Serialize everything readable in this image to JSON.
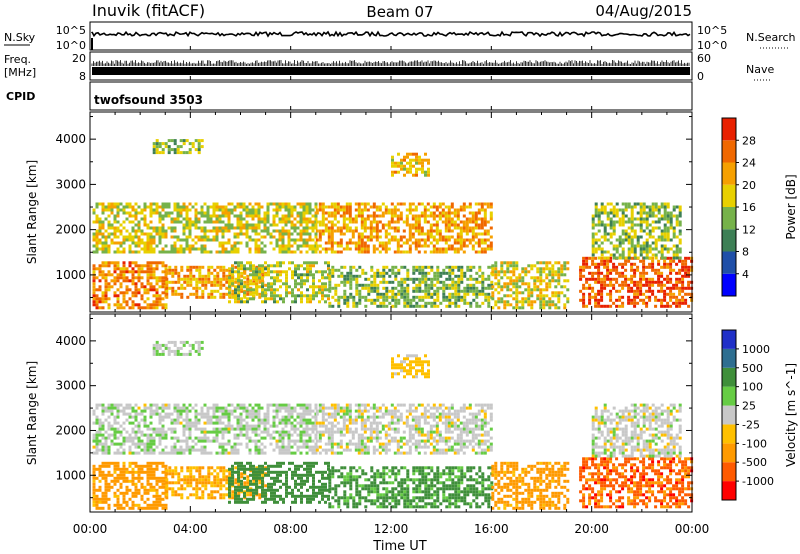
{
  "header": {
    "station": "Inuvik (fitACF)",
    "beam": "Beam 07",
    "date": "04/Aug/2015"
  },
  "noise_panel": {
    "left_label": "N.Sky",
    "right_label": "N.Search",
    "ticks": [
      "10^0",
      "10^5"
    ]
  },
  "freq_panel": {
    "left_label": "Freq.",
    "left_unit": "[MHz]",
    "left_ticks": [
      "8",
      "20"
    ],
    "right_label": "Nave",
    "right_ticks": [
      "0",
      "60"
    ]
  },
  "cpid_panel": {
    "label": "CPID",
    "program": "twofsound 3503"
  },
  "colors": {
    "power_scale": [
      "#0000ff",
      "#1f4fa8",
      "#3d7f55",
      "#76b24a",
      "#e8d000",
      "#f6a000",
      "#f06800",
      "#e82000"
    ],
    "velocity_scale": [
      "#ff0000",
      "#ff5a00",
      "#ff9a00",
      "#ffc000",
      "#c8c8c8",
      "#66cc44",
      "#3f8f3a",
      "#2e6e90",
      "#2030c8"
    ]
  },
  "chart_data": {
    "type": "heatmap",
    "xlabel": "Time UT",
    "x_ticks": [
      "00:00",
      "04:00",
      "08:00",
      "12:00",
      "16:00",
      "20:00",
      "00:00"
    ],
    "x_range_hours": [
      0,
      24
    ],
    "panels": [
      {
        "name": "power",
        "ylabel": "Slant Range [km]",
        "ylim": [
          180,
          4600
        ],
        "y_ticks": [
          1000,
          2000,
          3000,
          4000
        ],
        "colorbar_label": "Power [dB]",
        "colorbar_ticks": [
          "4",
          "8",
          "12",
          "16",
          "20",
          "24",
          "28"
        ],
        "colorbar_range": [
          0,
          32
        ]
      },
      {
        "name": "velocity",
        "ylabel": "Slant Range [km]",
        "ylim": [
          180,
          4600
        ],
        "y_ticks": [
          1000,
          2000,
          3000,
          4000
        ],
        "colorbar_label": "Velocity [m s^-1]",
        "colorbar_ticks": [
          "-1000",
          "-500",
          "-100",
          "-25",
          "25",
          "100",
          "500",
          "1000"
        ]
      }
    ],
    "echo_regions": [
      {
        "t": [
          0.1,
          3.0
        ],
        "r": [
          250,
          1300
        ],
        "power": 24,
        "velocity": -200
      },
      {
        "t": [
          3.0,
          7.0
        ],
        "r": [
          500,
          1200
        ],
        "power": 22,
        "velocity": -100
      },
      {
        "t": [
          5.5,
          9.5
        ],
        "r": [
          400,
          1300
        ],
        "power": 16,
        "velocity": 300
      },
      {
        "t": [
          0.1,
          9.0
        ],
        "r": [
          1500,
          2600
        ],
        "power": 17,
        "velocity": 10
      },
      {
        "t": [
          9.0,
          16.0
        ],
        "r": [
          1500,
          2600
        ],
        "power": 22,
        "velocity": 0
      },
      {
        "t": [
          9.5,
          16.0
        ],
        "r": [
          300,
          1200
        ],
        "power": 14,
        "velocity": 150
      },
      {
        "t": [
          12.0,
          13.5
        ],
        "r": [
          3200,
          3700
        ],
        "power": 20,
        "velocity": -50
      },
      {
        "t": [
          2.5,
          4.5
        ],
        "r": [
          3700,
          4000
        ],
        "power": 14,
        "velocity": 10
      },
      {
        "t": [
          16.0,
          19.0
        ],
        "r": [
          250,
          1300
        ],
        "power": 18,
        "velocity": -200
      },
      {
        "t": [
          19.5,
          24.0
        ],
        "r": [
          300,
          1400
        ],
        "power": 27,
        "velocity": -700
      },
      {
        "t": [
          20.0,
          23.5
        ],
        "r": [
          1400,
          2600
        ],
        "power": 15,
        "velocity": 0
      }
    ]
  }
}
